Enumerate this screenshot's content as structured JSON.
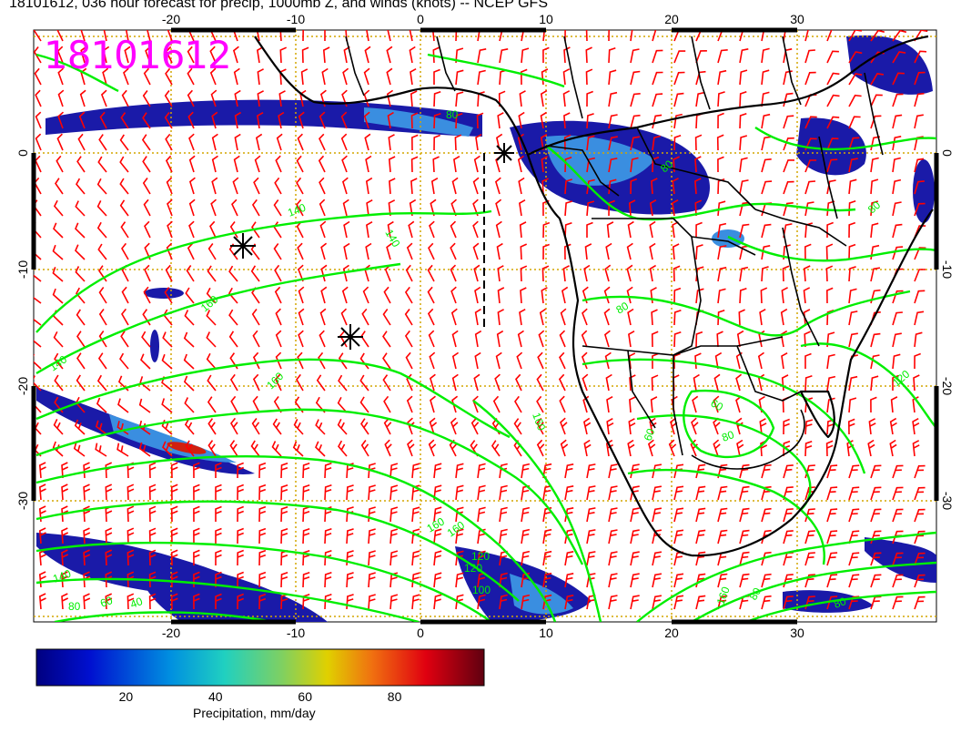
{
  "title": "18101612, 036 hour forecast for precip, 1000mb Z, and winds (knots) -- NCEP GFS",
  "stamp": "18101612",
  "map": {
    "lon_ticks": [
      "-20",
      "-10",
      "0",
      "10",
      "20",
      "30"
    ],
    "lat_ticks": [
      "0",
      "-10",
      "-20",
      "-30"
    ],
    "contour_labels": [
      "140",
      "140",
      "160",
      "160",
      "160",
      "160",
      "120",
      "80",
      "80",
      "60",
      "80",
      "120",
      "80",
      "60",
      "160",
      "140",
      "120",
      "100",
      "80",
      "60",
      "40",
      "160",
      "80",
      "140",
      "80",
      "80"
    ],
    "colors": {
      "coast": "#000000",
      "contour": "#00ee00",
      "wind": "#ff0000",
      "grid": "#d4a600",
      "precip_low": "#1a1aa8",
      "precip_mid": "#3a8ee0",
      "precip_high": "#d02010"
    }
  },
  "colorbar": {
    "label": "Precipitation, mm/day",
    "ticks": [
      "20",
      "40",
      "60",
      "80"
    ],
    "tick_values": [
      20,
      40,
      60,
      80
    ],
    "range": [
      0,
      100
    ]
  }
}
